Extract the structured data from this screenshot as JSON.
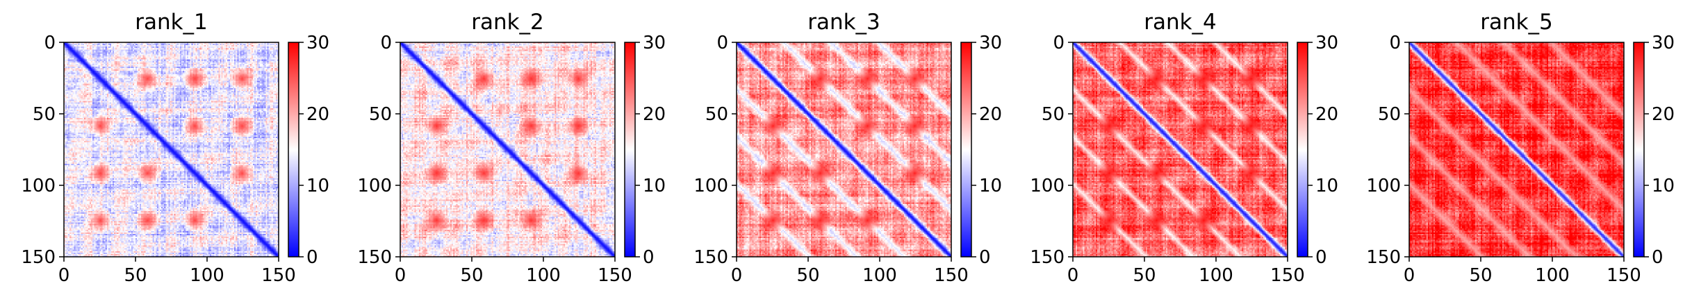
{
  "chart_data": [
    {
      "type": "heatmap",
      "title": "rank_1",
      "xlim": [
        0,
        150
      ],
      "ylim": [
        150,
        0
      ],
      "x_ticks": [
        0,
        50,
        100,
        150
      ],
      "y_ticks": [
        0,
        50,
        100,
        150
      ],
      "colorbar": {
        "range": [
          0,
          30
        ],
        "ticks": [
          0,
          10,
          20,
          30
        ],
        "colormap": "bwr",
        "colors": [
          "#0000ff",
          "#ffffff",
          "#ff0000"
        ]
      },
      "matrix_size": 150,
      "pattern": {
        "diagonal_value": 1,
        "background_value": 14,
        "blob_value": 26,
        "blob_centers": [
          25,
          58,
          91,
          124
        ],
        "blob_radius": 6,
        "band_width": 0,
        "band_value": 0
      }
    },
    {
      "type": "heatmap",
      "title": "rank_2",
      "xlim": [
        0,
        150
      ],
      "ylim": [
        150,
        0
      ],
      "x_ticks": [
        0,
        50,
        100,
        150
      ],
      "y_ticks": [
        0,
        50,
        100,
        150
      ],
      "colorbar": {
        "range": [
          0,
          30
        ],
        "ticks": [
          0,
          10,
          20,
          30
        ],
        "colormap": "bwr",
        "colors": [
          "#0000ff",
          "#ffffff",
          "#ff0000"
        ]
      },
      "matrix_size": 150,
      "pattern": {
        "diagonal_value": 1,
        "background_value": 16,
        "blob_value": 27,
        "blob_centers": [
          25,
          58,
          91,
          124
        ],
        "blob_radius": 6,
        "band_width": 0,
        "band_value": 0
      }
    },
    {
      "type": "heatmap",
      "title": "rank_3",
      "xlim": [
        0,
        150
      ],
      "ylim": [
        150,
        0
      ],
      "x_ticks": [
        0,
        50,
        100,
        150
      ],
      "y_ticks": [
        0,
        50,
        100,
        150
      ],
      "colorbar": {
        "range": [
          0,
          30
        ],
        "ticks": [
          0,
          10,
          20,
          30
        ],
        "colormap": "bwr",
        "colors": [
          "#0000ff",
          "#ffffff",
          "#ff0000"
        ]
      },
      "matrix_size": 150,
      "pattern": {
        "diagonal_value": 1,
        "background_value": 21,
        "blob_value": 28,
        "blob_centers": [
          25,
          58,
          91,
          124
        ],
        "blob_radius": 6,
        "band_width": 12,
        "band_value": 11
      }
    },
    {
      "type": "heatmap",
      "title": "rank_4",
      "xlim": [
        0,
        150
      ],
      "ylim": [
        150,
        0
      ],
      "x_ticks": [
        0,
        50,
        100,
        150
      ],
      "y_ticks": [
        0,
        50,
        100,
        150
      ],
      "colorbar": {
        "range": [
          0,
          30
        ],
        "ticks": [
          0,
          10,
          20,
          30
        ],
        "colormap": "bwr",
        "colors": [
          "#0000ff",
          "#ffffff",
          "#ff0000"
        ]
      },
      "matrix_size": 150,
      "pattern": {
        "diagonal_value": 2,
        "background_value": 24,
        "blob_value": 29,
        "blob_centers": [
          25,
          58,
          91,
          124
        ],
        "blob_radius": 6,
        "band_width": 10,
        "band_value": 14
      }
    },
    {
      "type": "heatmap",
      "title": "rank_5",
      "xlim": [
        0,
        150
      ],
      "ylim": [
        150,
        0
      ],
      "x_ticks": [
        0,
        50,
        100,
        150
      ],
      "y_ticks": [
        0,
        50,
        100,
        150
      ],
      "colorbar": {
        "range": [
          0,
          30
        ],
        "ticks": [
          0,
          10,
          20,
          30
        ],
        "colormap": "bwr",
        "colors": [
          "#0000ff",
          "#ffffff",
          "#ff0000"
        ]
      },
      "matrix_size": 150,
      "pattern": {
        "diagonal_value": 3,
        "background_value": 27,
        "blob_value": 28,
        "blob_centers": [],
        "blob_radius": 0,
        "band_width": 14,
        "band_value": 19
      }
    }
  ]
}
